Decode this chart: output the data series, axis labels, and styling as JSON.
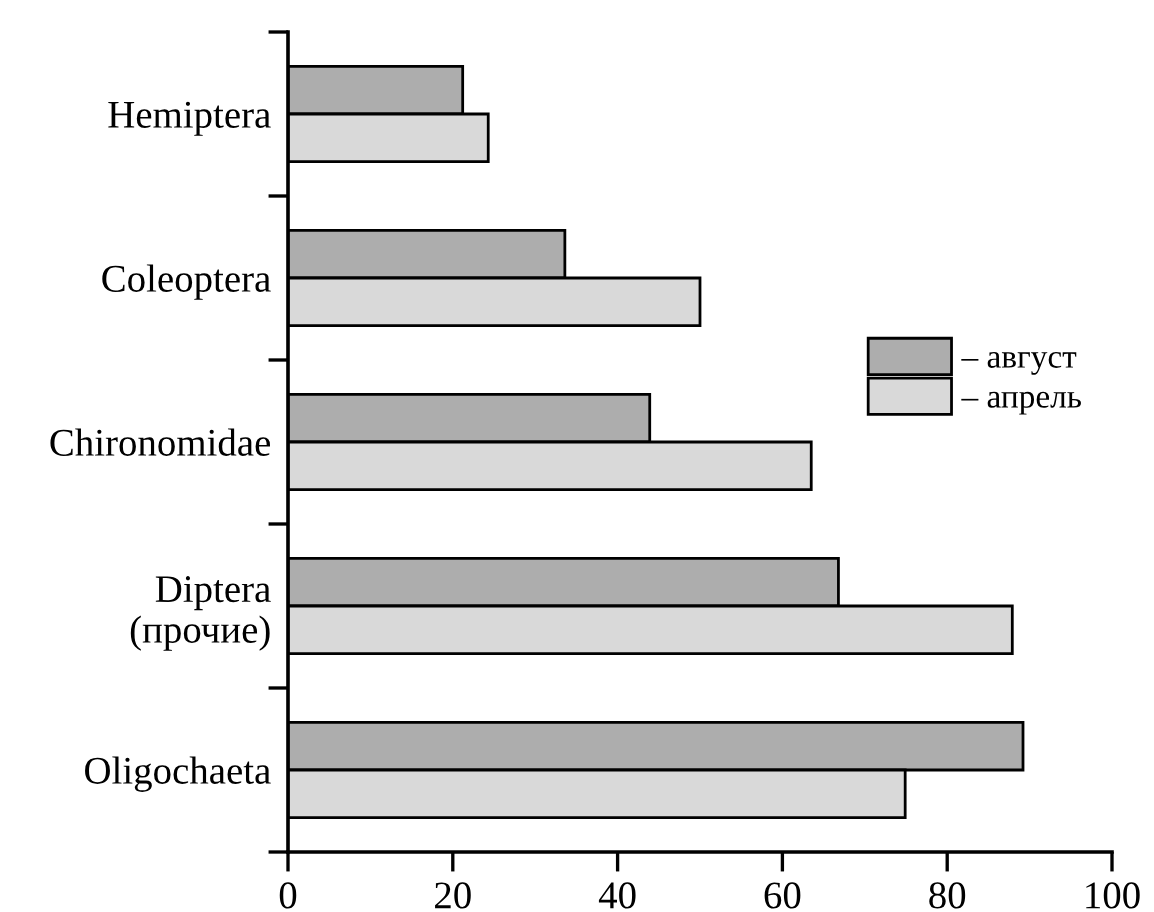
{
  "chart_data": {
    "type": "bar",
    "orientation": "horizontal",
    "categories": [
      "Hemiptera",
      "Coleoptera",
      "Chironomidae",
      "Diptera\n(прочие)",
      "Oligochaeta"
    ],
    "series": [
      {
        "name": "– август",
        "color": "#adadad",
        "values": [
          21.2,
          33.6,
          43.9,
          66.8,
          89.2
        ]
      },
      {
        "name": "– апрель",
        "color": "#d9d9d9",
        "values": [
          24.3,
          50.0,
          63.5,
          87.9,
          74.9
        ]
      }
    ],
    "xlim": [
      0,
      100
    ],
    "xticks": [
      0,
      20,
      40,
      60,
      80,
      100
    ],
    "grid": false,
    "legend": "right"
  }
}
